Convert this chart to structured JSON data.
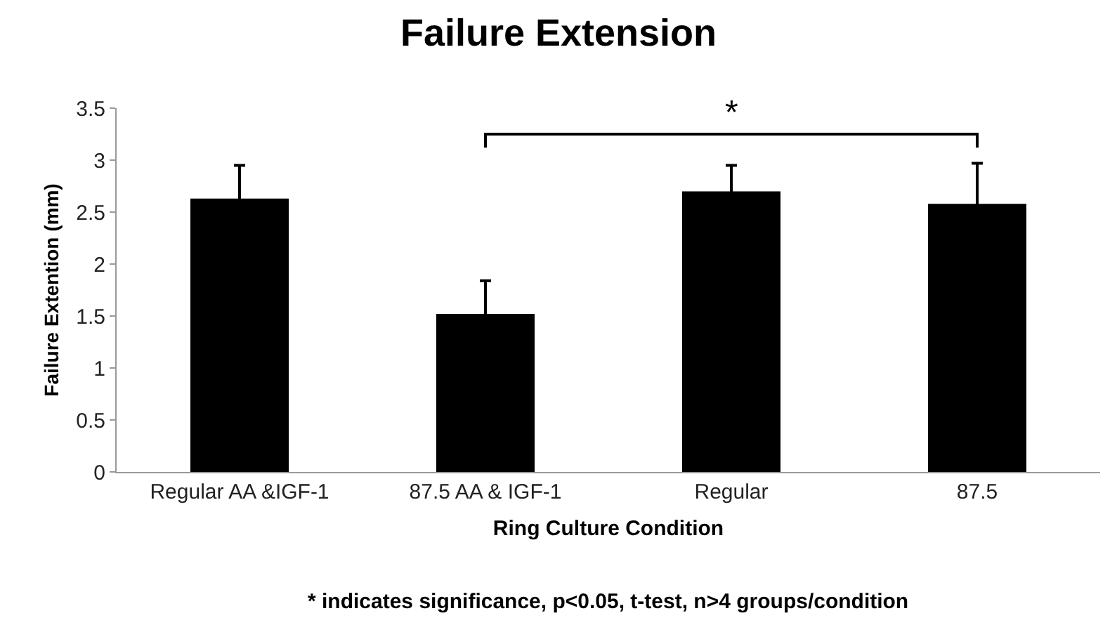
{
  "chart_data": {
    "type": "bar",
    "title": "Failure Extension",
    "xlabel": "Ring Culture Condition",
    "ylabel": "Failure Extention (mm)",
    "categories": [
      "Regular AA &IGF-1",
      "87.5 AA & IGF-1",
      "Regular",
      "87.5"
    ],
    "values": [
      2.63,
      1.52,
      2.7,
      2.58
    ],
    "errors": [
      0.32,
      0.32,
      0.25,
      0.39
    ],
    "color": "#000000",
    "ylim": [
      0,
      3.5
    ],
    "yticks": [
      0,
      0.5,
      1,
      1.5,
      2,
      2.5,
      3,
      3.5
    ],
    "grid": false,
    "legend": false,
    "annotations": [
      "*",
      "* indicates significance, p<0.05, t-test, n>4 groups/condition"
    ]
  }
}
